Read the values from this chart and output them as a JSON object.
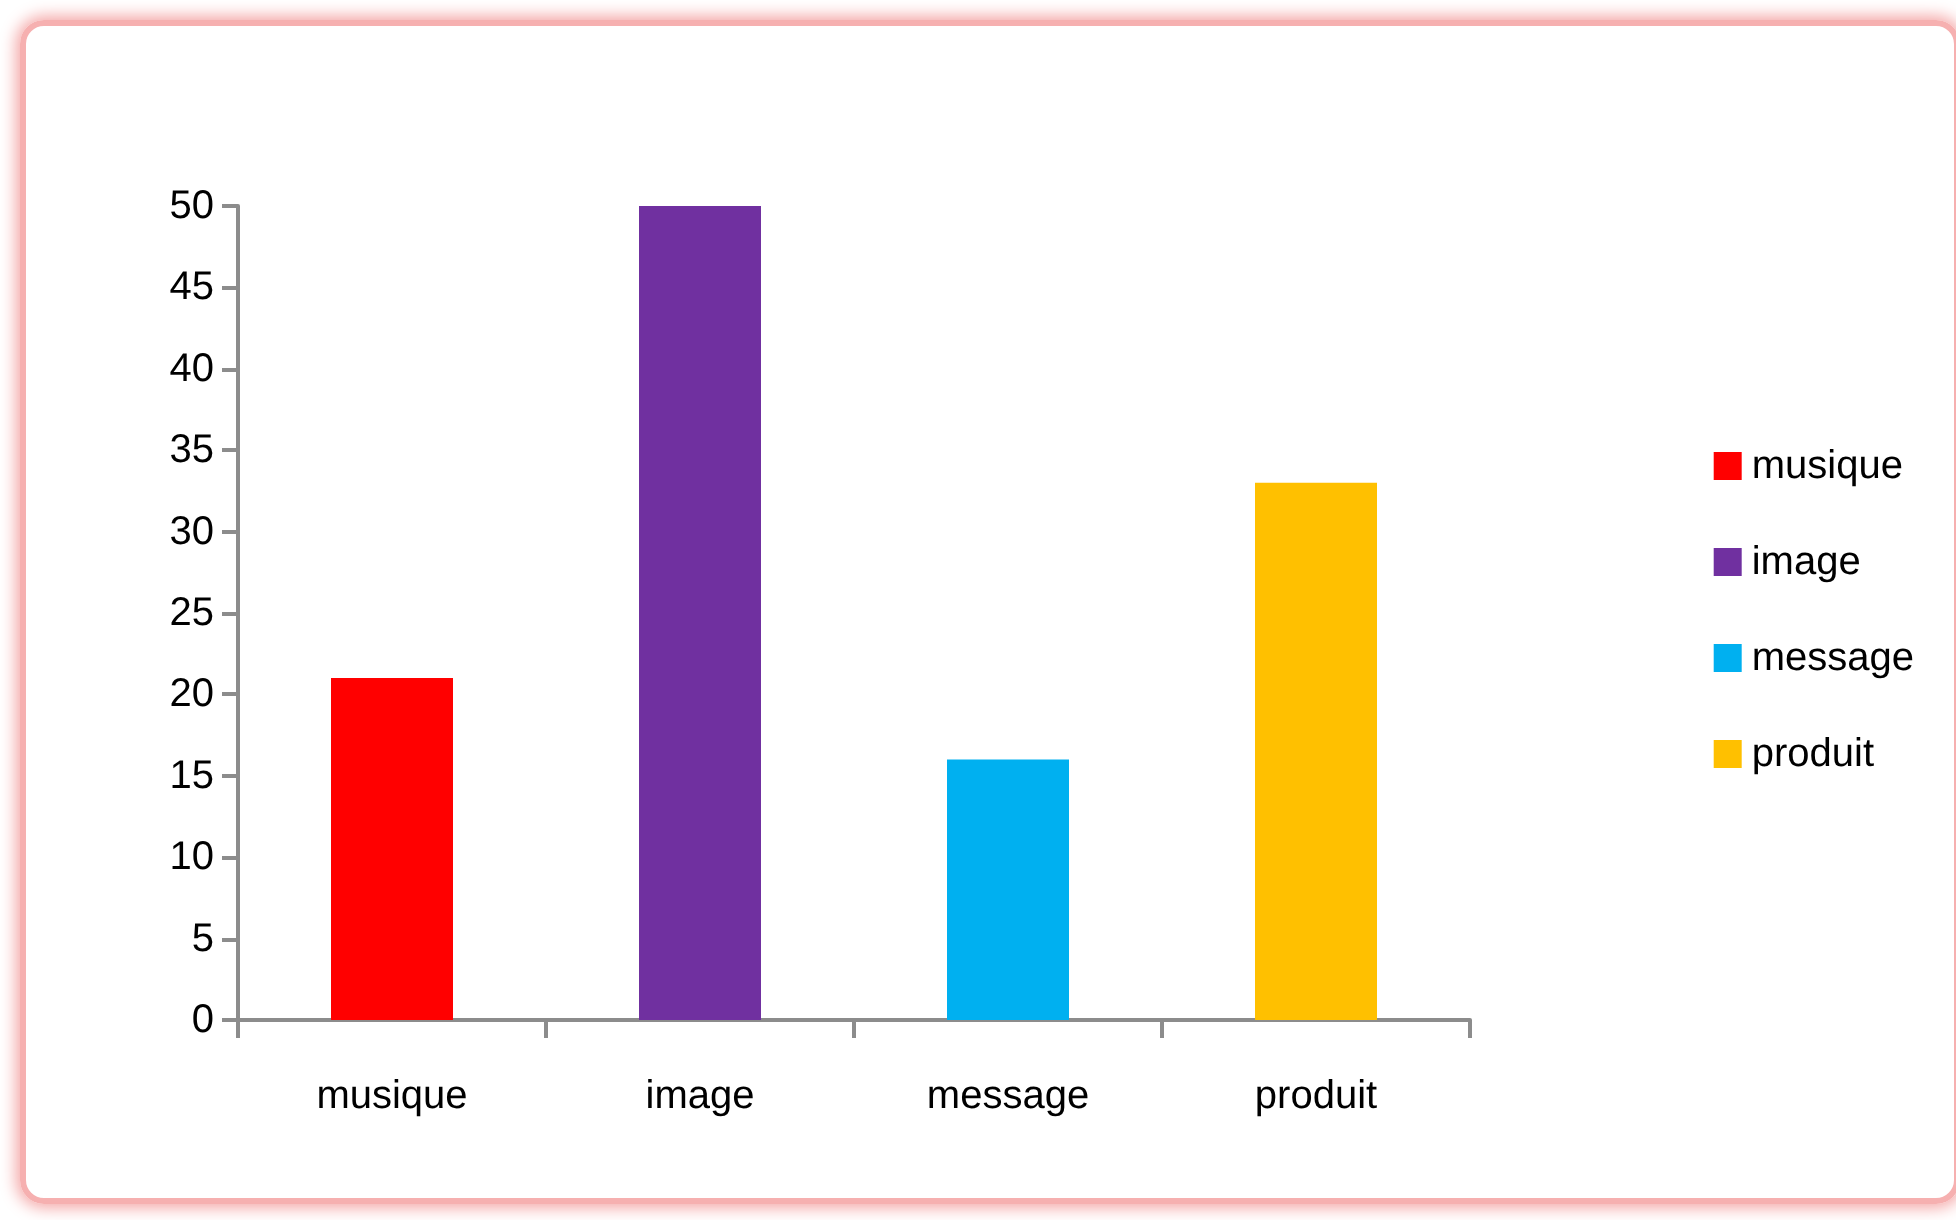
{
  "chart_data": {
    "type": "bar",
    "categories": [
      "musique",
      "image",
      "message",
      "produit"
    ],
    "series": [
      {
        "name": "musique",
        "color": "#ff0000",
        "values": [
          21,
          null,
          null,
          null
        ]
      },
      {
        "name": "image",
        "color": "#7030a0",
        "values": [
          null,
          50,
          null,
          null
        ]
      },
      {
        "name": "message",
        "color": "#00b0f0",
        "values": [
          null,
          null,
          16,
          null
        ]
      },
      {
        "name": "produit",
        "color": "#ffc000",
        "values": [
          null,
          null,
          null,
          33
        ]
      }
    ],
    "stacked": true,
    "ylim": [
      0,
      50
    ],
    "yticks": [
      0,
      5,
      10,
      15,
      20,
      25,
      30,
      35,
      40,
      45,
      50
    ],
    "legend": "right"
  }
}
